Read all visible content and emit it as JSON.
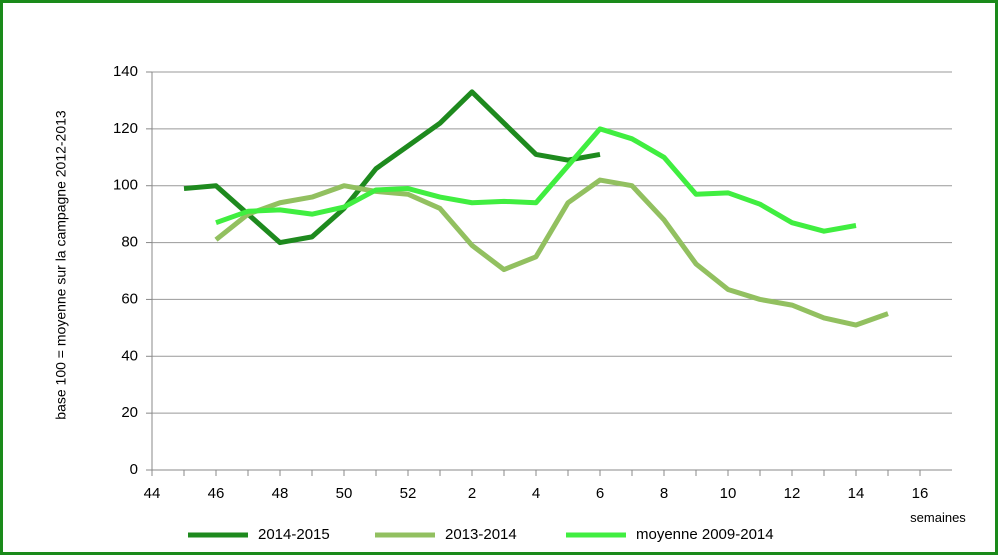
{
  "chart_data": {
    "type": "line",
    "y_label": "base 100 = moyenne sur la campagne 2012-2013",
    "x_label": "semaines",
    "categories": [
      "44",
      null,
      "46",
      null,
      "48",
      null,
      "50",
      null,
      "52",
      null,
      "2",
      null,
      "4",
      null,
      "6",
      null,
      "8",
      null,
      "10",
      null,
      "12",
      null,
      "14",
      null,
      "16"
    ],
    "series": [
      {
        "name": "2014-2015",
        "color": "#1e8a1e",
        "values": [
          null,
          99,
          100,
          90,
          80,
          82,
          92,
          106,
          114,
          122,
          133,
          122,
          111,
          109,
          111,
          null,
          null,
          null,
          null,
          null,
          null,
          null,
          null,
          null,
          null
        ]
      },
      {
        "name": "2013-2014",
        "color": "#92c060",
        "values": [
          null,
          null,
          81,
          90,
          94,
          96,
          100,
          98,
          97,
          92,
          79,
          70.5,
          75,
          94,
          102,
          100,
          88,
          72.5,
          63.5,
          60,
          58,
          53.5,
          51,
          55,
          null
        ]
      },
      {
        "name": "moyenne 2009-2014",
        "color": "#40ee40",
        "values": [
          null,
          null,
          87,
          91,
          91.5,
          90,
          92.5,
          98.5,
          99,
          96,
          94,
          94.5,
          94,
          107,
          120,
          116.5,
          110,
          97,
          97.5,
          93.5,
          87,
          84,
          86,
          null,
          null
        ]
      }
    ],
    "ylim": [
      0,
      140
    ],
    "yticks": [
      0,
      20,
      40,
      60,
      80,
      100,
      120,
      140
    ],
    "grid": true,
    "legend": "bottom"
  }
}
